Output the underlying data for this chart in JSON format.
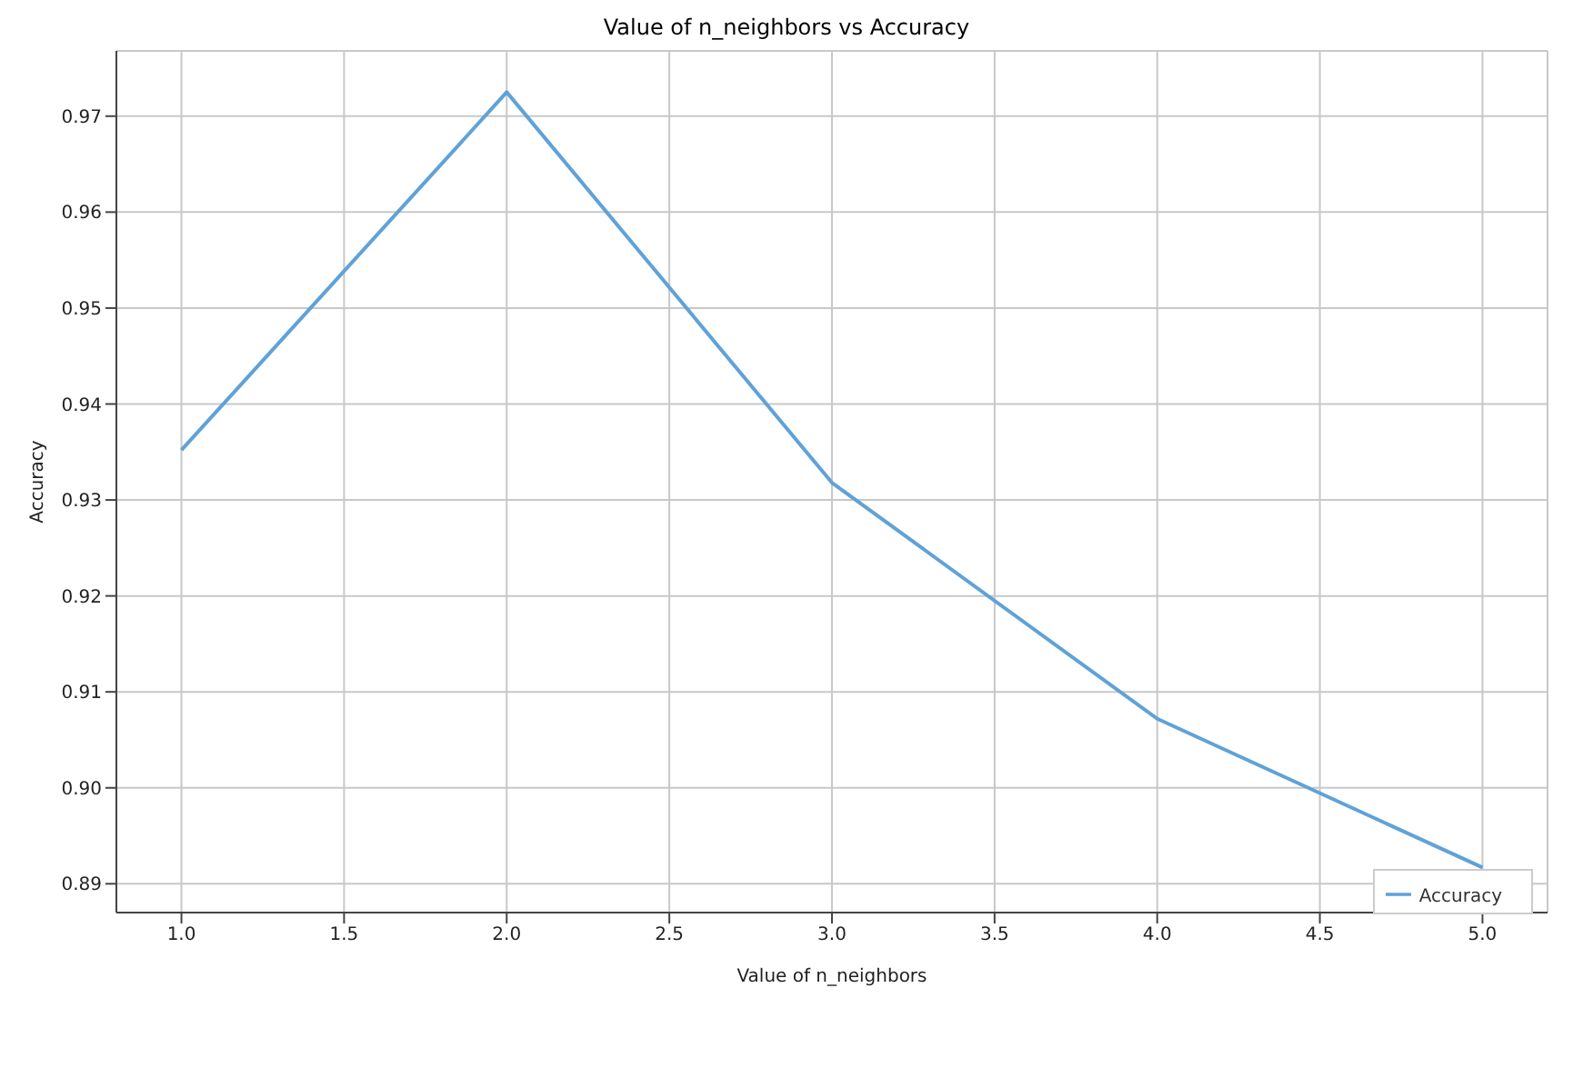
{
  "chart_data": {
    "type": "line",
    "title": "Value of n_neighbors vs Accuracy",
    "xlabel": "Value of n_neighbors",
    "ylabel": "Accuracy",
    "x": [
      1,
      2,
      3,
      4,
      5
    ],
    "series": [
      {
        "name": "Accuracy",
        "color": "#5fa2d8",
        "values": [
          0.9352,
          0.9725,
          0.9318,
          0.9072,
          0.8917
        ]
      }
    ],
    "xlim": [
      0.8,
      5.2
    ],
    "xticks": [
      {
        "value": 1,
        "label": "1.0"
      },
      1.5,
      {
        "value": 2,
        "label": "2.0"
      },
      2.5,
      {
        "value": 3,
        "label": "3.0"
      },
      3.5,
      {
        "value": 4,
        "label": "4.0"
      },
      4.5,
      {
        "value": 5,
        "label": "5.0"
      }
    ],
    "ylim": [
      0.887,
      0.9768
    ],
    "yticks": [
      0.89,
      {
        "value": 0.9,
        "label": "0.90"
      },
      0.91,
      0.92,
      0.93,
      0.94,
      0.95,
      0.96,
      0.97
    ],
    "grid": true,
    "legend": "bottom right",
    "marker": "none",
    "line_style": "solid"
  }
}
